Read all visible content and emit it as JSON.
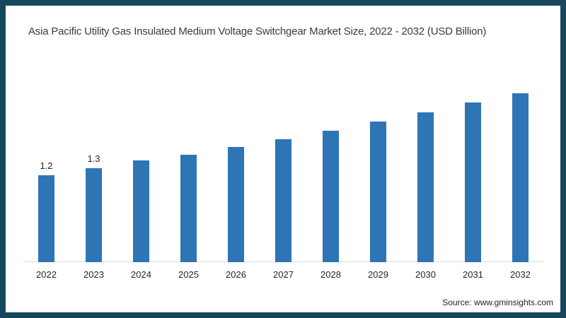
{
  "frame": {
    "border_color": "#17475C",
    "background": "#ffffff"
  },
  "header": {
    "title": "Asia Pacific Utility Gas Insulated Medium Voltage Switchgear Market Size, 2022 - 2032 (USD Billion)"
  },
  "footer": {
    "source": "Source: www.gminsights.com"
  },
  "chart_data": {
    "type": "bar",
    "title": "Asia Pacific Utility Gas Insulated Medium Voltage Switchgear Market Size, 2022 - 2032 (USD Billion)",
    "categories": [
      "2022",
      "2023",
      "2024",
      "2025",
      "2026",
      "2027",
      "2028",
      "2029",
      "2030",
      "2031",
      "2032"
    ],
    "values": [
      1.2,
      1.3,
      1.4,
      1.48,
      1.59,
      1.7,
      1.81,
      1.94,
      2.07,
      2.2,
      2.33
    ],
    "data_labels": [
      "1.2",
      "1.3",
      "",
      "",
      "",
      "",
      "",
      "",
      "",
      "",
      ""
    ],
    "xlabel": "",
    "ylabel": "",
    "unit": "USD Billion",
    "ylim": [
      0,
      2.6
    ],
    "grid": false,
    "legend": false,
    "bar_color": "#2E75B6",
    "axis_line_color": "#DCDCDC",
    "label_color": "#1F1F1F"
  }
}
